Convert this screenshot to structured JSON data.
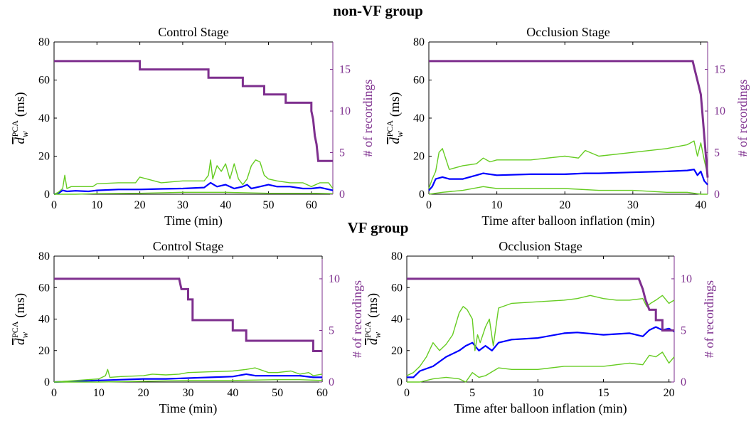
{
  "groups": [
    {
      "title": "non-VF group"
    },
    {
      "title": "VF group"
    }
  ],
  "colors": {
    "count": "#7e2f8e",
    "median": "#0000ff",
    "band": "#66cc22",
    "axis": "#000000"
  },
  "chart_data": [
    {
      "group": "non-VF group",
      "type": "line",
      "title": "Control Stage",
      "xlabel": "Time (min)",
      "ylabel": "d̄_w^PCA (ms)",
      "ylabel_right": "# of recordings",
      "xlim": [
        0,
        65
      ],
      "ylim": [
        0,
        80
      ],
      "ylim_right": [
        0,
        18.3
      ],
      "xticks": [
        0,
        10,
        20,
        30,
        40,
        50,
        60
      ],
      "yticks": [
        0,
        20,
        40,
        60,
        80
      ],
      "yticks_right": [
        0,
        5,
        10,
        15
      ],
      "recordings_step": [
        [
          0,
          16
        ],
        [
          20,
          16
        ],
        [
          20,
          15
        ],
        [
          36,
          15
        ],
        [
          36,
          14
        ],
        [
          44,
          14
        ],
        [
          44,
          13
        ],
        [
          49,
          13
        ],
        [
          49,
          12
        ],
        [
          54,
          12
        ],
        [
          54,
          11
        ],
        [
          60,
          11
        ],
        [
          60,
          10
        ],
        [
          60.4,
          9
        ],
        [
          60.8,
          7
        ],
        [
          61.2,
          6
        ],
        [
          61.6,
          4
        ],
        [
          65,
          4
        ]
      ],
      "series": [
        {
          "role": "median",
          "x": [
            0,
            1,
            2,
            3,
            5,
            8,
            10,
            15,
            20,
            25,
            30,
            35,
            36.5,
            38,
            40,
            42,
            44,
            45,
            46,
            48,
            50,
            52,
            55,
            58,
            60,
            62,
            65
          ],
          "y": [
            0,
            0.5,
            2,
            1.5,
            1.8,
            1.5,
            2,
            2.5,
            2.5,
            2.8,
            3,
            3.5,
            6,
            4,
            5,
            3,
            4,
            5,
            3,
            4,
            5,
            4,
            4,
            3,
            3,
            3.5,
            2
          ]
        },
        {
          "role": "upper",
          "x": [
            0,
            1,
            2,
            2.5,
            3,
            4,
            6,
            9,
            10,
            15,
            19,
            20,
            25,
            30,
            34,
            35,
            36,
            36.5,
            37,
            38,
            39,
            40,
            41,
            42,
            43,
            44,
            45,
            46,
            47,
            48,
            49,
            50,
            52,
            55,
            58,
            60,
            62,
            64,
            65
          ],
          "y": [
            0,
            1,
            3,
            10,
            3,
            4,
            4,
            4,
            5.5,
            6,
            6,
            9,
            6,
            7,
            7,
            7,
            10,
            18,
            8,
            15,
            12,
            16,
            8,
            16,
            8,
            5,
            8,
            15,
            18,
            17,
            10,
            8,
            7,
            6,
            6,
            4,
            6,
            6,
            3
          ]
        },
        {
          "role": "lower",
          "x": [
            0,
            5,
            10,
            20,
            30,
            40,
            50,
            60,
            65
          ],
          "y": [
            0,
            0,
            0.3,
            0.5,
            1,
            1,
            0.5,
            0.5,
            0.3
          ]
        }
      ]
    },
    {
      "group": "non-VF group",
      "type": "line",
      "title": "Occlusion Stage",
      "xlabel": "Time after balloon inflation (min)",
      "ylabel": "d̄_w^PCA (ms)",
      "ylabel_right": "# of recordings",
      "xlim": [
        0,
        41
      ],
      "ylim": [
        0,
        80
      ],
      "ylim_right": [
        0,
        18.3
      ],
      "xticks": [
        0,
        10,
        20,
        30,
        40
      ],
      "yticks": [
        0,
        20,
        40,
        60,
        80
      ],
      "yticks_right": [
        0,
        5,
        10,
        15
      ],
      "recordings_step": [
        [
          0,
          16
        ],
        [
          38.8,
          16
        ],
        [
          39.1,
          15
        ],
        [
          39.4,
          14
        ],
        [
          39.7,
          13
        ],
        [
          40,
          12
        ],
        [
          40.2,
          10
        ],
        [
          40.4,
          8
        ],
        [
          40.6,
          6
        ],
        [
          41,
          2
        ]
      ],
      "series": [
        {
          "role": "median",
          "x": [
            0,
            0.5,
            1,
            2,
            3,
            5,
            7,
            8,
            10,
            15,
            20,
            23,
            25,
            30,
            35,
            38,
            39,
            39.5,
            40,
            40.5,
            41
          ],
          "y": [
            2,
            4,
            8,
            9,
            8,
            8,
            10,
            11,
            10,
            10.5,
            10.5,
            11,
            11,
            11.5,
            12,
            12.5,
            13,
            10,
            12,
            7,
            5
          ]
        },
        {
          "role": "upper",
          "x": [
            0,
            0.5,
            1,
            1.5,
            2,
            3,
            5,
            7,
            8,
            9,
            10,
            15,
            20,
            22,
            23,
            25,
            30,
            35,
            38,
            39,
            39.5,
            40,
            40.5,
            41
          ],
          "y": [
            3,
            8,
            12,
            22,
            24,
            13,
            15,
            16,
            19,
            17,
            18,
            18,
            20,
            19,
            23,
            20,
            22,
            24,
            26,
            28,
            20,
            27,
            18,
            10
          ]
        },
        {
          "role": "lower",
          "x": [
            0,
            2,
            5,
            8,
            10,
            15,
            20,
            25,
            30,
            35,
            38,
            40,
            41
          ],
          "y": [
            0,
            1,
            2,
            4,
            3,
            3,
            3,
            2,
            2,
            1,
            1,
            0,
            0
          ]
        }
      ]
    },
    {
      "group": "VF group",
      "type": "line",
      "title": "Control Stage",
      "xlabel": "Time (min)",
      "ylabel": "d̄_w^PCA (ms)",
      "ylabel_right": "# of recordings",
      "xlim": [
        0,
        60
      ],
      "ylim": [
        0,
        80
      ],
      "ylim_right": [
        0,
        12.2
      ],
      "xticks": [
        0,
        10,
        20,
        30,
        40,
        50,
        60
      ],
      "yticks": [
        0,
        20,
        40,
        60,
        80
      ],
      "yticks_right": [
        0,
        5,
        10
      ],
      "recordings_step": [
        [
          0,
          10
        ],
        [
          28,
          10
        ],
        [
          28.5,
          9
        ],
        [
          30,
          9
        ],
        [
          30,
          8
        ],
        [
          31,
          8
        ],
        [
          31,
          6
        ],
        [
          40,
          6
        ],
        [
          40,
          5
        ],
        [
          43,
          5
        ],
        [
          43,
          4
        ],
        [
          58,
          4
        ],
        [
          58,
          3
        ],
        [
          60,
          3
        ]
      ],
      "series": [
        {
          "role": "median",
          "x": [
            0,
            5,
            10,
            15,
            20,
            25,
            30,
            35,
            40,
            43,
            45,
            50,
            55,
            58,
            60
          ],
          "y": [
            0,
            0.5,
            1,
            1.5,
            2,
            2,
            2.5,
            3,
            3.5,
            5,
            4,
            4,
            4,
            3,
            3
          ]
        },
        {
          "role": "upper",
          "x": [
            0,
            5,
            10,
            11.5,
            12,
            12.5,
            15,
            20,
            22,
            25,
            28,
            30,
            35,
            40,
            43,
            45,
            48,
            50,
            53,
            55,
            57,
            58,
            60
          ],
          "y": [
            0,
            1,
            2,
            4,
            8,
            3,
            3.5,
            4,
            5,
            4.5,
            5,
            6,
            6.5,
            7,
            8,
            9,
            6,
            6,
            7,
            5,
            6,
            4,
            5
          ]
        },
        {
          "role": "lower",
          "x": [
            0,
            10,
            20,
            30,
            40,
            50,
            55,
            60
          ],
          "y": [
            0,
            0,
            0.5,
            1,
            1,
            1.5,
            1.5,
            1
          ]
        }
      ]
    },
    {
      "group": "VF group",
      "type": "line",
      "title": "Occlusion Stage",
      "xlabel": "Time after balloon inflation (min)",
      "ylabel": "d̄_w^PCA (ms)",
      "ylabel_right": "# of recordings",
      "xlim": [
        0,
        20.4
      ],
      "ylim": [
        0,
        80
      ],
      "ylim_right": [
        0,
        12.2
      ],
      "xticks": [
        0,
        5,
        10,
        15,
        20
      ],
      "yticks": [
        0,
        20,
        40,
        60,
        80
      ],
      "yticks_right": [
        0,
        5,
        10
      ],
      "recordings_step": [
        [
          0,
          10
        ],
        [
          17.7,
          10
        ],
        [
          18,
          9
        ],
        [
          18.2,
          8
        ],
        [
          18.5,
          7
        ],
        [
          19,
          7
        ],
        [
          19,
          6
        ],
        [
          19.5,
          6
        ],
        [
          19.5,
          5
        ],
        [
          20.4,
          5
        ]
      ],
      "series": [
        {
          "role": "median",
          "x": [
            0,
            0.5,
            1,
            2,
            3,
            4,
            4.5,
            5,
            5.5,
            6,
            6.5,
            7,
            8,
            10,
            12,
            13,
            15,
            17,
            18,
            18.5,
            19,
            19.5,
            20,
            20.4
          ],
          "y": [
            3,
            3,
            7,
            10,
            16,
            20,
            23,
            25,
            20,
            23,
            20,
            25,
            27,
            28,
            31,
            31.5,
            30,
            31,
            29,
            33,
            35,
            33,
            34,
            32
          ]
        },
        {
          "role": "upper",
          "x": [
            0,
            0.5,
            1,
            1.5,
            2,
            2.5,
            3,
            3.5,
            4,
            4.3,
            4.6,
            5,
            5.2,
            5.4,
            5.6,
            6,
            6.3,
            6.6,
            7,
            8,
            10,
            12,
            13,
            14,
            15,
            16,
            17,
            18,
            18.3,
            18.6,
            19,
            19.5,
            20,
            20.4
          ],
          "y": [
            4,
            6,
            10,
            16,
            25,
            20,
            24,
            30,
            44,
            48,
            46,
            40,
            20,
            30,
            25,
            35,
            40,
            23,
            47,
            50,
            51,
            52,
            53,
            55,
            53,
            52,
            52,
            53,
            48,
            50,
            52,
            55,
            50,
            52
          ]
        },
        {
          "role": "lower",
          "x": [
            0,
            1,
            2,
            3,
            4,
            4.5,
            5,
            5.5,
            6,
            7,
            8,
            10,
            12,
            15,
            17,
            18,
            18.5,
            19,
            19.5,
            20,
            20.4
          ],
          "y": [
            0,
            0,
            2,
            3,
            2,
            0,
            6,
            3,
            4,
            9,
            8,
            8,
            10,
            10,
            12,
            11,
            17,
            16,
            19,
            12,
            16
          ]
        }
      ]
    }
  ]
}
